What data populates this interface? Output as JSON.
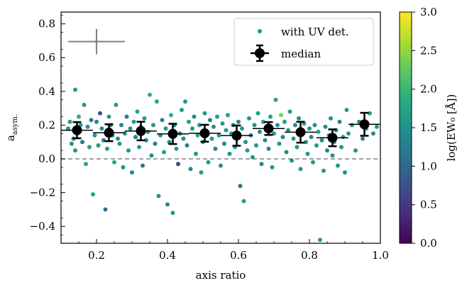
{
  "chart_data": {
    "type": "scatter",
    "xlabel": "axis ratio",
    "ylabel_main": "a",
    "ylabel_sub": "asym.",
    "xlim": [
      0.1,
      1.0
    ],
    "ylim": [
      -0.5,
      0.87
    ],
    "x_ticks": [
      0.2,
      0.4,
      0.6,
      0.8,
      1.0
    ],
    "x_tick_labels": [
      "0.2",
      "0.4",
      "0.6",
      "0.8",
      "1.0"
    ],
    "y_ticks": [
      -0.4,
      -0.2,
      0.0,
      0.2,
      0.4,
      0.6,
      0.8
    ],
    "y_tick_labels": [
      "−0.4",
      "−0.2",
      "0.0",
      "0.2",
      "0.4",
      "0.6",
      "0.8"
    ],
    "reference_line": {
      "y": 0.0,
      "style": "dashed",
      "color": "#808080"
    },
    "legend": {
      "placement": "top-right",
      "entries": [
        {
          "label": "with UV det.",
          "marker": "dot"
        },
        {
          "label": "median",
          "marker": "errorbar-circle"
        }
      ]
    },
    "colorbar": {
      "label": "log(EW₀ [Å])",
      "range": [
        0.0,
        3.0
      ],
      "ticks": [
        0.0,
        0.5,
        1.0,
        1.5,
        2.0,
        2.5,
        3.0
      ],
      "tick_labels": [
        "0.0",
        "0.5",
        "1.0",
        "1.5",
        "2.0",
        "2.5",
        "3.0"
      ],
      "colormap": "viridis"
    },
    "typical_error": {
      "x": 0.2,
      "y": 0.695,
      "xerr": 0.08,
      "yerr": 0.075,
      "color": "#808080"
    },
    "median": {
      "name": "median",
      "x": [
        0.145,
        0.235,
        0.325,
        0.415,
        0.505,
        0.595,
        0.685,
        0.775,
        0.865,
        0.955
      ],
      "y": [
        0.17,
        0.155,
        0.165,
        0.148,
        0.152,
        0.138,
        0.18,
        0.158,
        0.125,
        0.205
      ],
      "yerr": [
        0.048,
        0.05,
        0.055,
        0.06,
        0.05,
        0.06,
        0.038,
        0.062,
        0.05,
        0.068
      ],
      "xerr": 0.045
    },
    "scatter": {
      "name": "with UV det.",
      "points": [
        [
          0.12,
          0.18,
          1.6
        ],
        [
          0.125,
          0.22,
          1.7
        ],
        [
          0.13,
          0.09,
          1.5
        ],
        [
          0.135,
          0.12,
          1.3
        ],
        [
          0.14,
          0.41,
          1.7
        ],
        [
          0.14,
          0.05,
          1.6
        ],
        [
          0.145,
          0.15,
          1.4
        ],
        [
          0.15,
          0.25,
          1.9
        ],
        [
          0.155,
          0.2,
          1.6
        ],
        [
          0.16,
          0.1,
          1.2
        ],
        [
          0.165,
          0.32,
          1.6
        ],
        [
          0.17,
          -0.03,
          1.8
        ],
        [
          0.175,
          0.19,
          1.5
        ],
        [
          0.18,
          0.07,
          1.7
        ],
        [
          0.185,
          0.23,
          1.3
        ],
        [
          0.19,
          -0.21,
          1.8
        ],
        [
          0.195,
          0.14,
          1.6
        ],
        [
          0.2,
          0.22,
          1.4
        ],
        [
          0.205,
          0.08,
          1.6
        ],
        [
          0.21,
          0.27,
          0.7
        ],
        [
          0.215,
          0.18,
          1.5
        ],
        [
          0.22,
          0.11,
          1.2
        ],
        [
          0.225,
          -0.3,
          1.1
        ],
        [
          0.23,
          0.06,
          1.7
        ],
        [
          0.235,
          0.25,
          1.6
        ],
        [
          0.24,
          0.2,
          1.3
        ],
        [
          0.245,
          0.14,
          1.5
        ],
        [
          0.25,
          -0.02,
          1.8
        ],
        [
          0.255,
          0.32,
          1.6
        ],
        [
          0.26,
          0.12,
          1.5
        ],
        [
          0.265,
          0.09,
          1.6
        ],
        [
          0.27,
          0.2,
          1.4
        ],
        [
          0.275,
          -0.05,
          1.5
        ],
        [
          0.28,
          0.15,
          1.7
        ],
        [
          0.285,
          0.25,
          1.3
        ],
        [
          0.29,
          0.05,
          1.6
        ],
        [
          0.295,
          0.18,
          1.5
        ],
        [
          0.3,
          -0.08,
          1.4
        ],
        [
          0.305,
          0.22,
          1.6
        ],
        [
          0.31,
          0.13,
          1.3
        ],
        [
          0.315,
          0.28,
          1.7
        ],
        [
          0.32,
          0.07,
          1.6
        ],
        [
          0.325,
          0.19,
          1.5
        ],
        [
          0.33,
          -0.04,
          1.2
        ],
        [
          0.335,
          0.24,
          1.6
        ],
        [
          0.34,
          0.11,
          1.4
        ],
        [
          0.345,
          0.16,
          1.7
        ],
        [
          0.35,
          0.38,
          1.9
        ],
        [
          0.355,
          0.02,
          1.5
        ],
        [
          0.36,
          0.2,
          1.6
        ],
        [
          0.365,
          0.09,
          1.3
        ],
        [
          0.37,
          0.34,
          1.8
        ],
        [
          0.375,
          -0.22,
          1.5
        ],
        [
          0.38,
          0.14,
          1.6
        ],
        [
          0.385,
          0.23,
          1.4
        ],
        [
          0.39,
          0.04,
          1.7
        ],
        [
          0.395,
          0.18,
          1.6
        ],
        [
          0.4,
          -0.27,
          1.4
        ],
        [
          0.405,
          0.1,
          1.5
        ],
        [
          0.41,
          0.26,
          1.9
        ],
        [
          0.415,
          -0.32,
          1.6
        ],
        [
          0.42,
          0.2,
          1.5
        ],
        [
          0.425,
          0.06,
          1.7
        ],
        [
          0.43,
          -0.03,
          0.6
        ],
        [
          0.435,
          0.15,
          1.4
        ],
        [
          0.44,
          0.29,
          1.6
        ],
        [
          0.445,
          0.12,
          1.5
        ],
        [
          0.45,
          0.34,
          1.6
        ],
        [
          0.455,
          0.08,
          1.3
        ],
        [
          0.46,
          0.22,
          1.7
        ],
        [
          0.465,
          -0.06,
          1.5
        ],
        [
          0.47,
          0.18,
          1.6
        ],
        [
          0.475,
          0.25,
          1.4
        ],
        [
          0.48,
          0.03,
          1.6
        ],
        [
          0.485,
          0.14,
          1.8
        ],
        [
          0.49,
          0.2,
          1.5
        ],
        [
          0.495,
          -0.08,
          1.6
        ],
        [
          0.5,
          0.1,
          1.4
        ],
        [
          0.505,
          0.27,
          1.6
        ],
        [
          0.51,
          0.16,
          1.5
        ],
        [
          0.515,
          -0.02,
          1.7
        ],
        [
          0.52,
          0.23,
          1.3
        ],
        [
          0.525,
          0.12,
          1.6
        ],
        [
          0.53,
          0.19,
          1.5
        ],
        [
          0.535,
          0.06,
          1.4
        ],
        [
          0.54,
          0.25,
          1.7
        ],
        [
          0.545,
          0.14,
          1.6
        ],
        [
          0.55,
          -0.04,
          1.5
        ],
        [
          0.555,
          0.21,
          1.6
        ],
        [
          0.56,
          0.09,
          1.4
        ],
        [
          0.565,
          0.17,
          1.6
        ],
        [
          0.57,
          0.26,
          1.7
        ],
        [
          0.575,
          0.03,
          1.5
        ],
        [
          0.58,
          0.15,
          1.6
        ],
        [
          0.585,
          0.2,
          1.3
        ],
        [
          0.59,
          0.07,
          1.6
        ],
        [
          0.595,
          0.12,
          1.5
        ],
        [
          0.6,
          0.22,
          1.4
        ],
        [
          0.605,
          -0.16,
          1.2
        ],
        [
          0.61,
          0.18,
          1.6
        ],
        [
          0.615,
          -0.25,
          1.7
        ],
        [
          0.62,
          0.1,
          1.5
        ],
        [
          0.625,
          0.05,
          1.7
        ],
        [
          0.63,
          0.24,
          1.6
        ],
        [
          0.635,
          0.14,
          1.4
        ],
        [
          0.64,
          0.01,
          1.6
        ],
        [
          0.645,
          0.2,
          1.5
        ],
        [
          0.65,
          0.08,
          1.6
        ],
        [
          0.655,
          0.27,
          1.7
        ],
        [
          0.66,
          0.16,
          1.5
        ],
        [
          0.665,
          -0.03,
          1.4
        ],
        [
          0.67,
          0.22,
          1.6
        ],
        [
          0.675,
          0.11,
          1.5
        ],
        [
          0.68,
          0.19,
          1.6
        ],
        [
          0.685,
          0.06,
          1.4
        ],
        [
          0.69,
          0.25,
          1.7
        ],
        [
          0.695,
          -0.05,
          1.5
        ],
        [
          0.7,
          0.15,
          1.6
        ],
        [
          0.705,
          0.35,
          1.8
        ],
        [
          0.71,
          0.2,
          1.5
        ],
        [
          0.715,
          0.09,
          1.6
        ],
        [
          0.72,
          0.26,
          2.4
        ],
        [
          0.725,
          0.13,
          1.4
        ],
        [
          0.73,
          0.22,
          1.6
        ],
        [
          0.735,
          0.04,
          1.5
        ],
        [
          0.74,
          0.17,
          1.6
        ],
        [
          0.745,
          0.28,
          1.7
        ],
        [
          0.75,
          -0.01,
          1.5
        ],
        [
          0.755,
          0.12,
          1.6
        ],
        [
          0.76,
          0.2,
          1.4
        ],
        [
          0.765,
          0.07,
          1.6
        ],
        [
          0.77,
          0.24,
          1.5
        ],
        [
          0.775,
          -0.06,
          1.6
        ],
        [
          0.78,
          0.15,
          1.4
        ],
        [
          0.785,
          0.21,
          1.7
        ],
        [
          0.79,
          0.1,
          1.5
        ],
        [
          0.795,
          0.03,
          1.6
        ],
        [
          0.8,
          0.18,
          1.5
        ],
        [
          0.805,
          0.13,
          1.4
        ],
        [
          0.81,
          -0.02,
          1.6
        ],
        [
          0.815,
          0.2,
          1.5
        ],
        [
          0.82,
          0.08,
          1.6
        ],
        [
          0.825,
          0.16,
          1.7
        ],
        [
          0.83,
          -0.48,
          1.7
        ],
        [
          0.835,
          0.11,
          1.5
        ],
        [
          0.84,
          -0.07,
          1.6
        ],
        [
          0.845,
          0.19,
          1.5
        ],
        [
          0.85,
          0.05,
          1.4
        ],
        [
          0.855,
          0.14,
          1.6
        ],
        [
          0.86,
          0.24,
          1.5
        ],
        [
          0.865,
          0.02,
          1.6
        ],
        [
          0.87,
          0.1,
          1.7
        ],
        [
          0.875,
          0.17,
          1.5
        ],
        [
          0.88,
          -0.04,
          1.6
        ],
        [
          0.885,
          0.22,
          1.4
        ],
        [
          0.89,
          0.07,
          1.6
        ],
        [
          0.895,
          0.13,
          1.5
        ],
        [
          0.9,
          -0.08,
          1.5
        ],
        [
          0.905,
          0.29,
          1.7
        ],
        [
          0.91,
          0.15,
          1.6
        ],
        [
          0.92,
          0.2,
          1.4
        ],
        [
          0.93,
          0.05,
          1.6
        ],
        [
          0.94,
          0.22,
          1.5
        ],
        [
          0.95,
          0.12,
          1.3
        ],
        [
          0.96,
          0.18,
          1.6
        ],
        [
          0.97,
          0.27,
          1.7
        ],
        [
          0.98,
          0.15,
          1.5
        ],
        [
          0.99,
          0.19,
          1.6
        ]
      ]
    }
  }
}
